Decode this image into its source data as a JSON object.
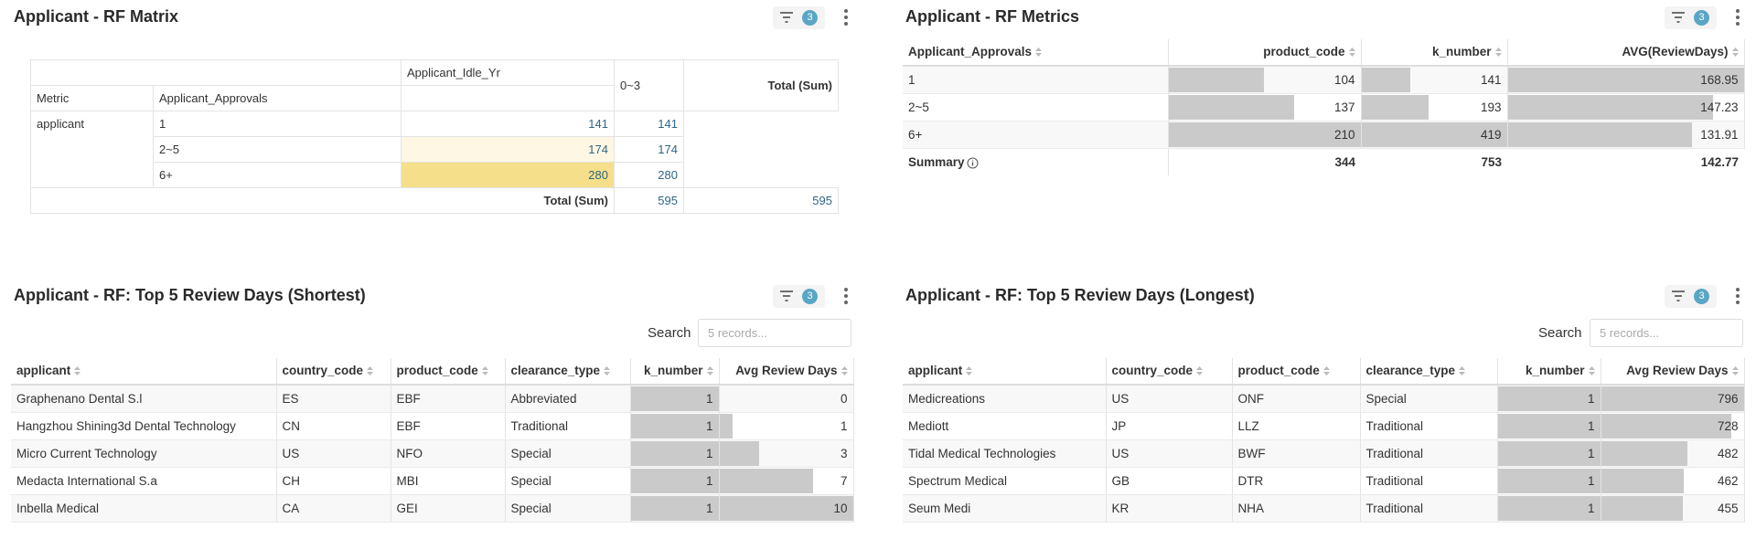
{
  "rf_matrix": {
    "title": "Applicant - RF Matrix",
    "filter_count": 3,
    "col_header_label": "Applicant_Idle_Yr",
    "col_value": "0~3",
    "total_label": "Total (Sum)",
    "metric_label": "Metric",
    "row_header_label": "Applicant_Approvals",
    "metric": "applicant",
    "rows": [
      {
        "label": "1",
        "value": 141,
        "total": 141
      },
      {
        "label": "2~5",
        "value": 174,
        "total": 174
      },
      {
        "label": "6+",
        "value": 280,
        "total": 280
      }
    ],
    "grand_total_label": "Total (Sum)",
    "grand_total": {
      "value": 595,
      "total": 595
    },
    "heatmap_color": "#f6df8a"
  },
  "rf_metrics": {
    "title": "Applicant - RF Metrics",
    "filter_count": 3,
    "columns": [
      "Applicant_Approvals",
      "product_code",
      "k_number",
      "AVG(ReviewDays)"
    ],
    "rows": [
      [
        "1",
        104,
        141,
        168.95
      ],
      [
        "2~5",
        137,
        193,
        147.23
      ],
      [
        "6+",
        210,
        419,
        131.91
      ]
    ],
    "summary_label": "Summary",
    "summary": [
      344,
      753,
      142.77
    ],
    "bar_color": "#cacaca"
  },
  "shortest": {
    "title": "Applicant - RF: Top 5 Review Days (Shortest)",
    "filter_count": 3,
    "search_label": "Search",
    "search_placeholder": "5 records...",
    "columns": [
      "applicant",
      "country_code",
      "product_code",
      "clearance_type",
      "k_number",
      "Avg Review Days"
    ],
    "rows": [
      [
        "Graphenano Dental S.l",
        "ES",
        "EBF",
        "Abbreviated",
        1,
        0
      ],
      [
        "Hangzhou Shining3d Dental Technology",
        "CN",
        "EBF",
        "Traditional",
        1,
        1
      ],
      [
        "Micro Current Technology",
        "US",
        "NFO",
        "Special",
        1,
        3
      ],
      [
        "Medacta International S.a",
        "CH",
        "MBI",
        "Special",
        1,
        7
      ],
      [
        "Inbella Medical",
        "CA",
        "GEI",
        "Special",
        1,
        10
      ]
    ],
    "bar_color": "#cacaca"
  },
  "longest": {
    "title": "Applicant - RF: Top 5 Review Days (Longest)",
    "filter_count": 3,
    "search_label": "Search",
    "search_placeholder": "5 records...",
    "columns": [
      "applicant",
      "country_code",
      "product_code",
      "clearance_type",
      "k_number",
      "Avg Review Days"
    ],
    "rows": [
      [
        "Medicreations",
        "US",
        "ONF",
        "Special",
        1,
        796
      ],
      [
        "Mediott",
        "JP",
        "LLZ",
        "Traditional",
        1,
        728
      ],
      [
        "Tidal Medical Technologies",
        "US",
        "BWF",
        "Traditional",
        1,
        482
      ],
      [
        "Spectrum Medical",
        "GB",
        "DTR",
        "Traditional",
        1,
        462
      ],
      [
        "Seum Medi",
        "KR",
        "NHA",
        "Traditional",
        1,
        455
      ]
    ],
    "bar_color": "#cacaca"
  }
}
